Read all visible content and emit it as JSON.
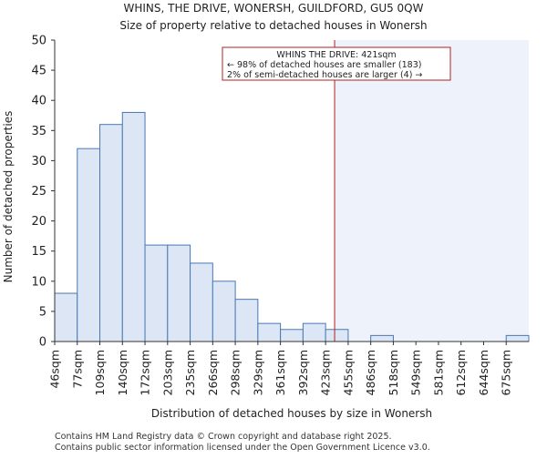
{
  "chart_data": {
    "type": "bar",
    "title": "WHINS, THE DRIVE, WONERSH, GUILDFORD, GU5 0QW",
    "subtitle": "Size of property relative to detached houses in Wonersh",
    "xlabel": "Distribution of detached houses by size in Wonersh",
    "ylabel": "Number of detached properties",
    "categories": [
      "46sqm",
      "77sqm",
      "109sqm",
      "140sqm",
      "172sqm",
      "203sqm",
      "235sqm",
      "266sqm",
      "298sqm",
      "329sqm",
      "361sqm",
      "392sqm",
      "423sqm",
      "455sqm",
      "486sqm",
      "518sqm",
      "549sqm",
      "581sqm",
      "612sqm",
      "644sqm",
      "675sqm"
    ],
    "values": [
      8,
      32,
      36,
      38,
      16,
      16,
      13,
      10,
      7,
      3,
      2,
      3,
      2,
      0,
      1,
      0,
      0,
      0,
      0,
      0,
      1
    ],
    "ylim": [
      0,
      50
    ],
    "yticks": [
      0,
      5,
      10,
      15,
      20,
      25,
      30,
      35,
      40,
      45,
      50
    ],
    "grid": false,
    "marker_bin": 12.4,
    "annotation": {
      "line1": "WHINS THE DRIVE: 421sqm",
      "line2": "← 98% of detached houses are smaller (183)",
      "line3": "2% of semi-detached houses are larger (4) →"
    },
    "colors": {
      "bar_fill": "#dce6f4",
      "bar_edge": "#4a78b5",
      "marker": "#b22222",
      "shade": "#eef2fa",
      "box_edge": "#b22222"
    }
  },
  "footer": {
    "line1": "Contains HM Land Registry data © Crown copyright and database right 2025.",
    "line2": "Contains public sector information licensed under the Open Government Licence v3.0."
  }
}
